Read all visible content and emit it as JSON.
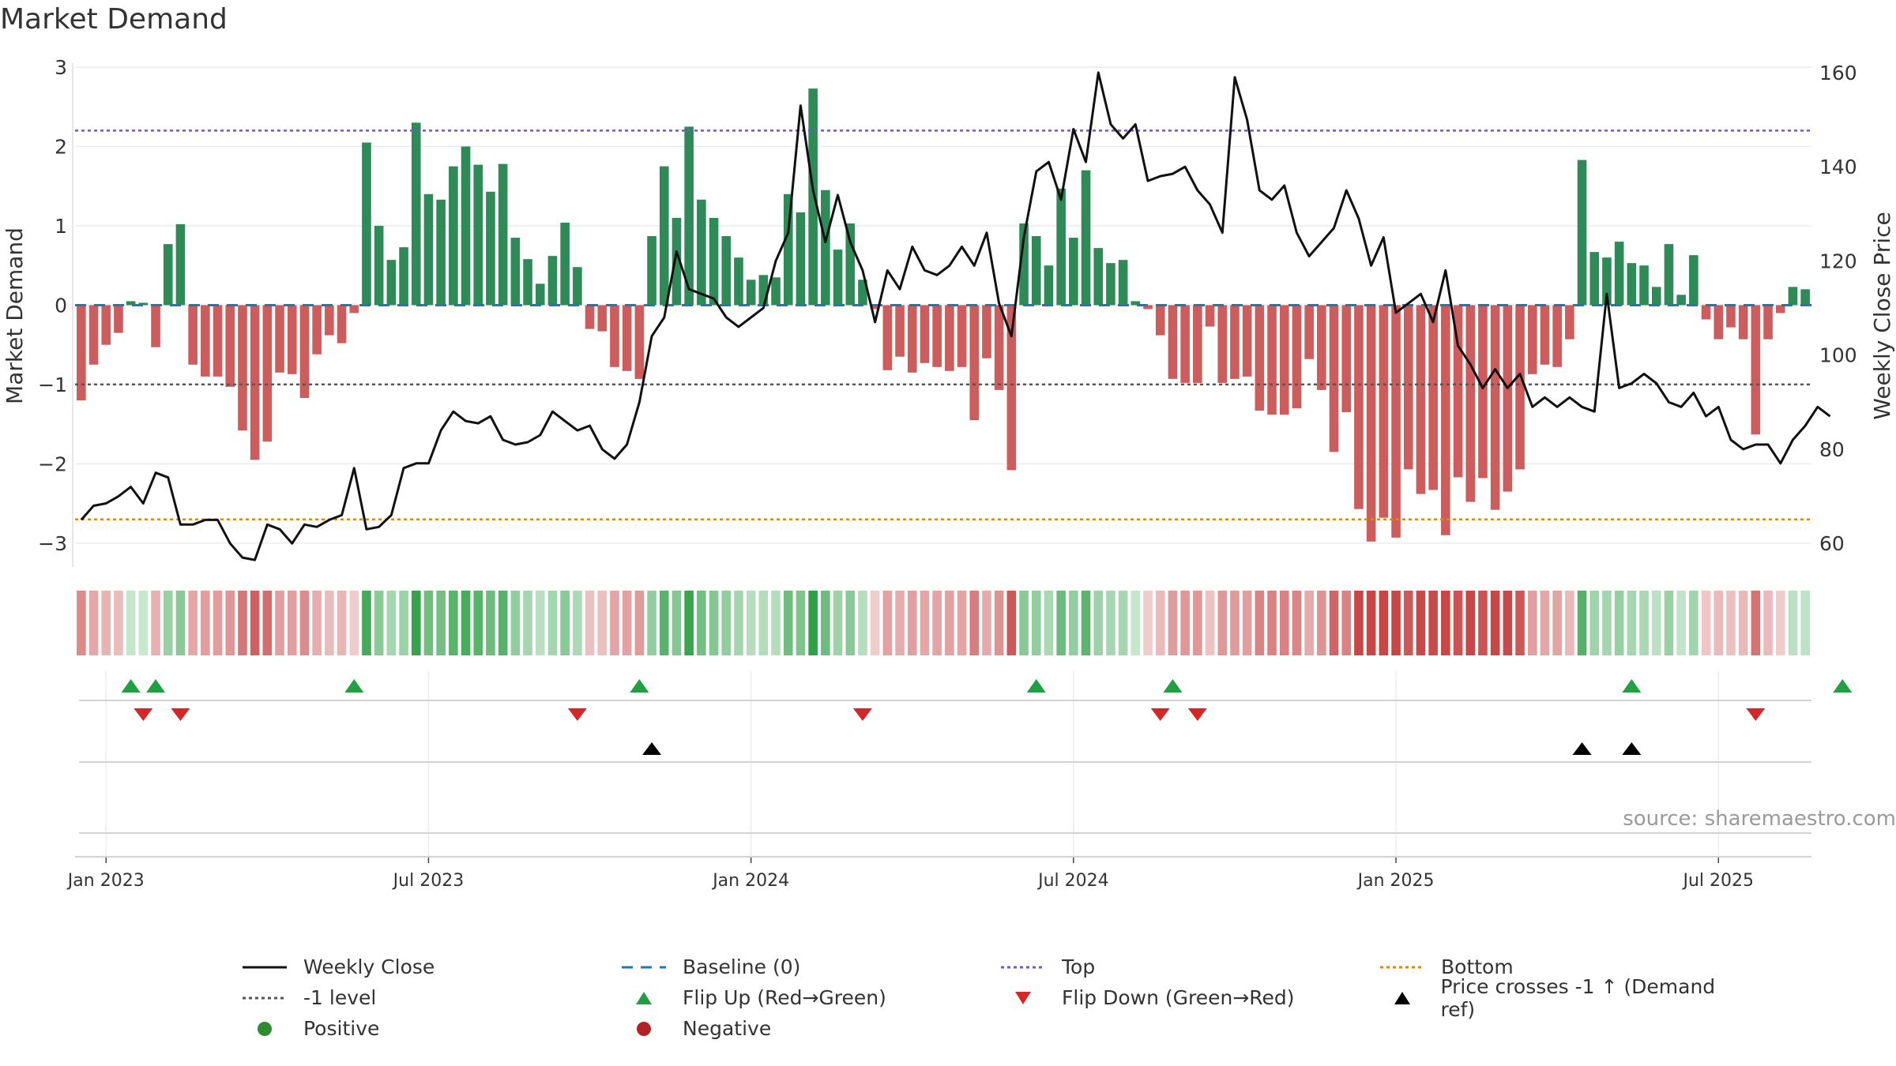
{
  "title": "Market Demand",
  "watermark": "source: sharemaestro.com",
  "legend": {
    "weekly_close": "Weekly Close",
    "baseline": "Baseline (0)",
    "top": "Top",
    "bottom": "Bottom",
    "minus1": "-1 level",
    "flip_up": "Flip Up (Red→Green)",
    "flip_down": "Flip Down (Green→Red)",
    "price_cross": "Price crosses -1 ↑ (Demand ref)",
    "positive": "Positive",
    "negative": "Negative"
  },
  "colors": {
    "positive": "#2e8b57",
    "negative": "#cd5c5c",
    "top": "#6a5acd",
    "bottom": "#e08a00",
    "baseline": "#1f77b4",
    "flip_up": "#21a043",
    "flip_down": "#d62728",
    "price": "#111111"
  },
  "chart_data": {
    "type": "bar",
    "title": "Market Demand",
    "ylabel": "Market Demand",
    "y2label": "Weekly Close Price",
    "ylim": [
      -3.3,
      3.05
    ],
    "y2lim": [
      55,
      162
    ],
    "yticks": [
      -3,
      -2,
      -1,
      0,
      1,
      2,
      3
    ],
    "ytick_labels": [
      "−3",
      "−2",
      "−1",
      "0",
      "1",
      "2",
      "3"
    ],
    "y2ticks": [
      60,
      80,
      100,
      120,
      140,
      160
    ],
    "x_ticks": [
      "Jan 2023",
      "Jul 2023",
      "Jan 2024",
      "Jul 2024",
      "Jan 2025",
      "Jul 2025"
    ],
    "x_tick_weeks": [
      2,
      28,
      54,
      80,
      106,
      132
    ],
    "reference_lines": {
      "top": 2.2,
      "bottom": -2.7,
      "minus1": -1,
      "baseline": 0
    },
    "demand": [
      -1.2,
      -0.75,
      -0.5,
      -0.35,
      0.05,
      0.03,
      -0.53,
      0.77,
      1.02,
      -0.75,
      -0.9,
      -0.9,
      -1.03,
      -1.58,
      -1.95,
      -1.72,
      -0.85,
      -0.87,
      -1.17,
      -0.62,
      -0.38,
      -0.48,
      -0.1,
      2.05,
      1.0,
      0.57,
      0.73,
      2.3,
      1.4,
      1.33,
      1.75,
      2.0,
      1.77,
      1.43,
      1.78,
      0.85,
      0.58,
      0.27,
      0.62,
      1.04,
      0.48,
      -0.3,
      -0.33,
      -0.78,
      -0.83,
      -0.93,
      0.87,
      1.75,
      1.1,
      2.25,
      1.33,
      1.1,
      0.87,
      0.6,
      0.32,
      0.38,
      0.35,
      1.4,
      1.17,
      2.73,
      1.45,
      0.7,
      1.03,
      0.32,
      -0.05,
      -0.82,
      -0.65,
      -0.85,
      -0.73,
      -0.78,
      -0.83,
      -0.78,
      -1.45,
      -0.67,
      -1.07,
      -2.08,
      1.03,
      0.87,
      0.5,
      1.47,
      0.85,
      1.7,
      0.72,
      0.53,
      0.57,
      0.05,
      -0.05,
      -0.38,
      -0.93,
      -0.98,
      -0.98,
      -0.27,
      -0.98,
      -0.93,
      -0.9,
      -1.33,
      -1.38,
      -1.38,
      -1.3,
      -0.68,
      -1.07,
      -1.85,
      -1.35,
      -2.57,
      -2.98,
      -2.68,
      -2.93,
      -2.07,
      -2.38,
      -2.33,
      -2.9,
      -2.17,
      -2.48,
      -2.18,
      -2.58,
      -2.35,
      -2.07,
      -0.87,
      -0.75,
      -0.78,
      -0.43,
      1.83,
      0.67,
      0.6,
      0.8,
      0.53,
      0.5,
      0.23,
      0.77,
      0.13,
      0.63,
      -0.18,
      -0.43,
      -0.28,
      -0.43,
      -1.63,
      -0.43,
      -0.1,
      0.23,
      0.2
    ],
    "price": [
      65,
      68,
      68.5,
      70,
      72,
      68.5,
      75,
      74,
      64,
      64,
      65,
      65,
      60,
      57,
      56.5,
      64,
      63,
      60,
      64,
      63.5,
      65,
      66,
      76,
      63,
      63.5,
      66,
      76,
      77,
      77,
      84,
      88,
      86,
      85.5,
      87,
      82,
      81,
      81.5,
      83,
      88,
      86,
      84,
      85,
      80,
      78,
      81,
      90,
      104,
      108,
      122,
      114,
      113,
      112,
      108,
      106,
      108,
      110,
      120,
      126,
      153,
      135,
      124,
      134,
      124,
      118,
      107,
      118,
      114,
      123,
      118,
      117,
      119,
      123,
      119,
      126,
      111,
      104,
      125,
      139,
      141,
      133,
      148,
      141,
      160,
      149,
      146,
      149,
      137,
      138,
      138.5,
      140,
      135,
      132,
      126,
      159,
      150,
      135,
      133,
      136,
      126,
      121,
      124,
      127,
      135,
      129,
      119,
      125,
      109,
      111,
      113,
      107,
      118,
      102,
      98,
      93,
      97,
      93,
      96,
      89,
      91,
      89,
      91,
      89,
      88,
      113,
      93,
      94,
      96,
      94,
      90,
      89,
      92,
      87,
      89,
      82,
      80,
      81,
      81,
      77,
      82,
      85,
      89,
      87
    ],
    "demand_ribbon": "color intensity per week mirrors the demand value (green positive, red negative)",
    "flip_up_weeks": [
      4,
      6,
      22,
      45,
      77,
      88,
      125,
      142
    ],
    "flip_down_weeks": [
      5,
      8,
      40,
      63,
      87,
      90,
      135
    ],
    "price_cross_weeks": [
      46,
      121,
      125
    ]
  }
}
